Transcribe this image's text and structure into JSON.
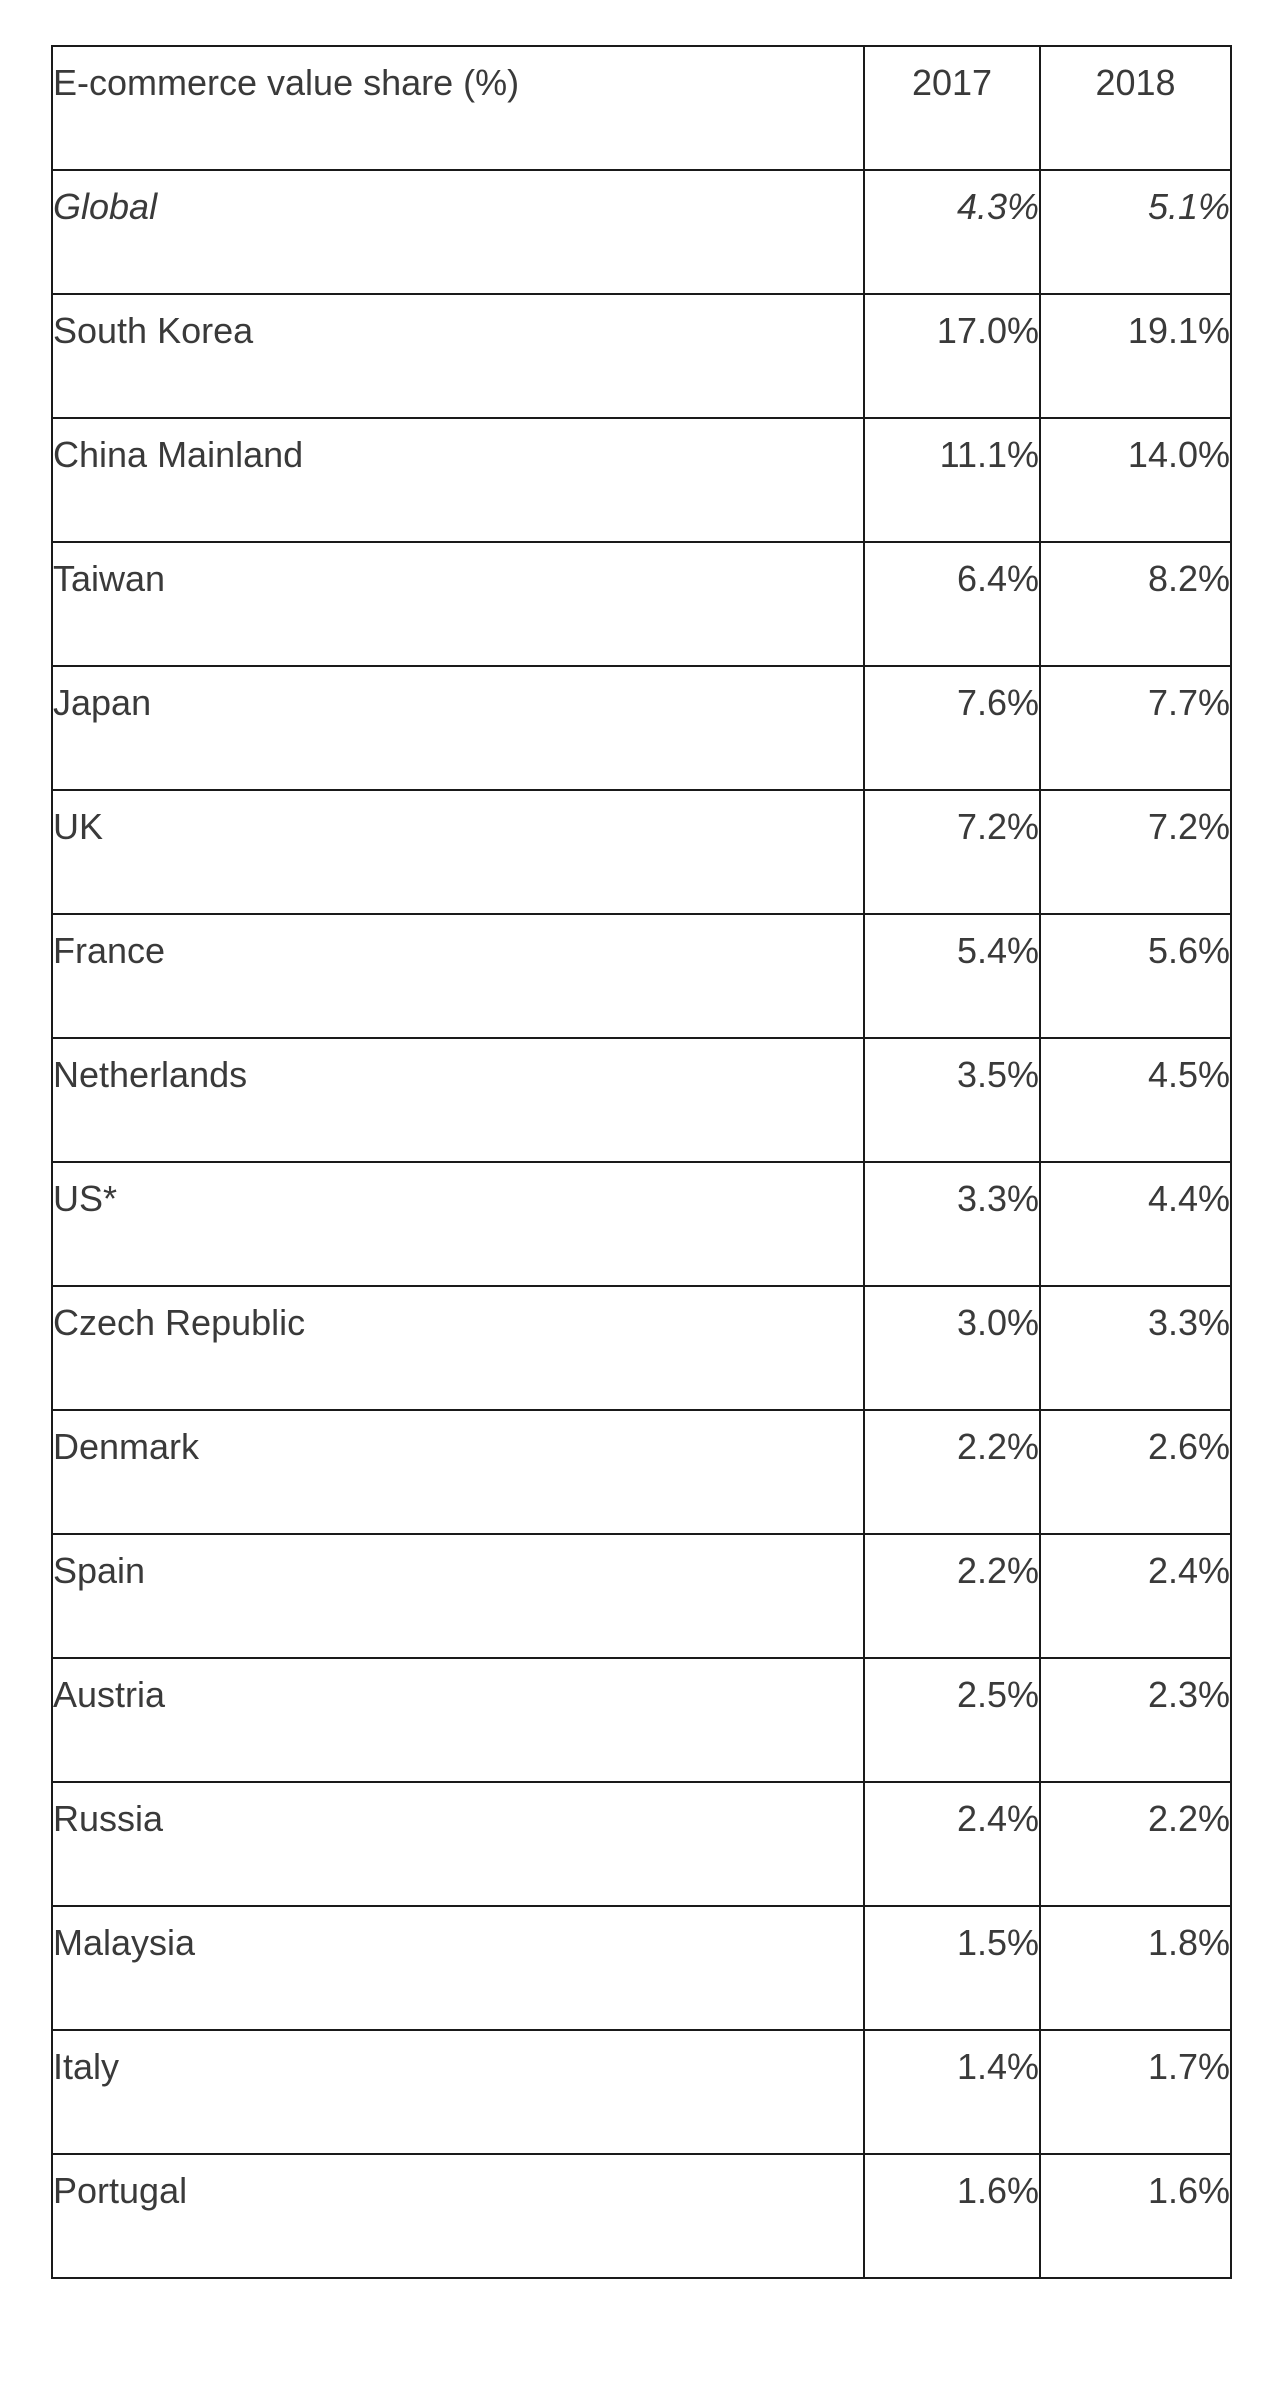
{
  "chart_data": {
    "type": "table",
    "columns": [
      "E-commerce value share (%)",
      "2017",
      "2018"
    ],
    "rows": [
      {
        "label": "Global",
        "v2017": "4.3%",
        "v2018": "5.1%"
      },
      {
        "label": "South Korea",
        "v2017": "17.0%",
        "v2018": "19.1%"
      },
      {
        "label": "China Mainland",
        "v2017": "11.1%",
        "v2018": "14.0%"
      },
      {
        "label": "Taiwan",
        "v2017": "6.4%",
        "v2018": "8.2%"
      },
      {
        "label": "Japan",
        "v2017": "7.6%",
        "v2018": "7.7%"
      },
      {
        "label": "UK",
        "v2017": "7.2%",
        "v2018": "7.2%"
      },
      {
        "label": "France",
        "v2017": "5.4%",
        "v2018": "5.6%"
      },
      {
        "label": "Netherlands",
        "v2017": "3.5%",
        "v2018": "4.5%"
      },
      {
        "label": "US*",
        "v2017": "3.3%",
        "v2018": "4.4%"
      },
      {
        "label": "Czech Republic",
        "v2017": "3.0%",
        "v2018": "3.3%"
      },
      {
        "label": "Denmark",
        "v2017": "2.2%",
        "v2018": "2.6%"
      },
      {
        "label": "Spain",
        "v2017": "2.2%",
        "v2018": "2.4%"
      },
      {
        "label": "Austria",
        "v2017": "2.5%",
        "v2018": "2.3%"
      },
      {
        "label": "Russia",
        "v2017": "2.4%",
        "v2018": "2.2%"
      },
      {
        "label": "Malaysia",
        "v2017": "1.5%",
        "v2018": "1.8%"
      },
      {
        "label": "Italy",
        "v2017": "1.4%",
        "v2018": "1.7%"
      },
      {
        "label": "Portugal",
        "v2017": "1.6%",
        "v2018": "1.6%"
      }
    ],
    "series": [
      {
        "name": "2017",
        "values": [
          4.3,
          17.0,
          11.1,
          6.4,
          7.6,
          7.2,
          5.4,
          3.5,
          3.3,
          3.0,
          2.2,
          2.2,
          2.5,
          2.4,
          1.5,
          1.4,
          1.6
        ]
      },
      {
        "name": "2018",
        "values": [
          5.1,
          19.1,
          14.0,
          8.2,
          7.7,
          7.2,
          5.6,
          4.5,
          4.4,
          3.3,
          2.6,
          2.4,
          2.3,
          2.2,
          1.8,
          1.7,
          1.6
        ]
      }
    ],
    "colors": {
      "text": "#3a3a3a",
      "border": "#1a1a1a",
      "background": "#ffffff"
    }
  }
}
